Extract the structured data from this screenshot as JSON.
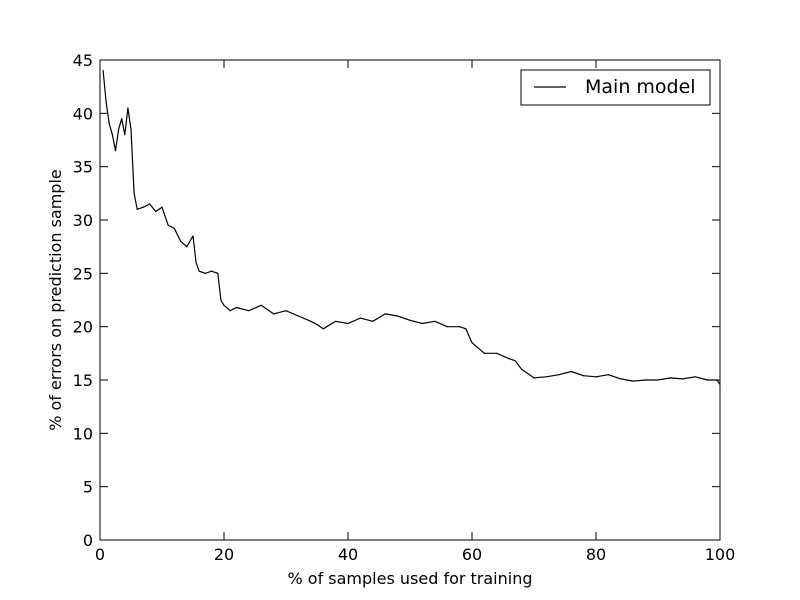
{
  "chart_data": {
    "type": "line",
    "title": "",
    "xlabel": "% of samples used for training",
    "ylabel": "% of errors on prediction sample",
    "xlim": [
      0,
      100
    ],
    "ylim": [
      0,
      45
    ],
    "xticks": [
      0,
      20,
      40,
      60,
      80,
      100
    ],
    "yticks": [
      0,
      5,
      10,
      15,
      20,
      25,
      30,
      35,
      40,
      45
    ],
    "grid": false,
    "legend_position": "top-right",
    "colors": {
      "line": "#000000",
      "axes": "#000000",
      "background": "#ffffff"
    },
    "series": [
      {
        "name": "Main model",
        "x": [
          0.5,
          1.0,
          1.5,
          2.0,
          2.5,
          3.0,
          3.5,
          4.0,
          4.5,
          5.0,
          5.5,
          6.0,
          7.0,
          8.0,
          9.0,
          10.0,
          11.0,
          12.0,
          13.0,
          14.0,
          15.0,
          15.5,
          16.0,
          17.0,
          18.0,
          19.0,
          19.5,
          20.0,
          21.0,
          22.0,
          24.0,
          26.0,
          28.0,
          30.0,
          32.0,
          34.0,
          35.0,
          36.0,
          38.0,
          40.0,
          42.0,
          44.0,
          46.0,
          48.0,
          50.0,
          52.0,
          54.0,
          56.0,
          58.0,
          59.0,
          60.0,
          62.0,
          64.0,
          66.0,
          67.0,
          68.0,
          70.0,
          72.0,
          74.0,
          76.0,
          78.0,
          80.0,
          82.0,
          84.0,
          86.0,
          88.0,
          90.0,
          92.0,
          94.0,
          96.0,
          98.0,
          99.5,
          100.0
        ],
        "y": [
          44.0,
          41.0,
          39.0,
          38.0,
          36.5,
          38.5,
          39.5,
          38.0,
          40.5,
          38.5,
          32.5,
          31.0,
          31.2,
          31.5,
          30.8,
          31.2,
          29.5,
          29.2,
          28.0,
          27.5,
          28.5,
          26.0,
          25.2,
          25.0,
          25.2,
          25.0,
          22.5,
          22.0,
          21.5,
          21.8,
          21.5,
          22.0,
          21.2,
          21.5,
          21.0,
          20.5,
          20.2,
          19.8,
          20.5,
          20.3,
          20.8,
          20.5,
          21.2,
          21.0,
          20.6,
          20.3,
          20.5,
          20.0,
          20.0,
          19.8,
          18.5,
          17.5,
          17.5,
          17.0,
          16.8,
          16.0,
          15.2,
          15.3,
          15.5,
          15.8,
          15.4,
          15.3,
          15.5,
          15.1,
          14.9,
          15.0,
          15.0,
          15.2,
          15.1,
          15.3,
          15.0,
          15.0,
          14.6
        ]
      }
    ]
  }
}
